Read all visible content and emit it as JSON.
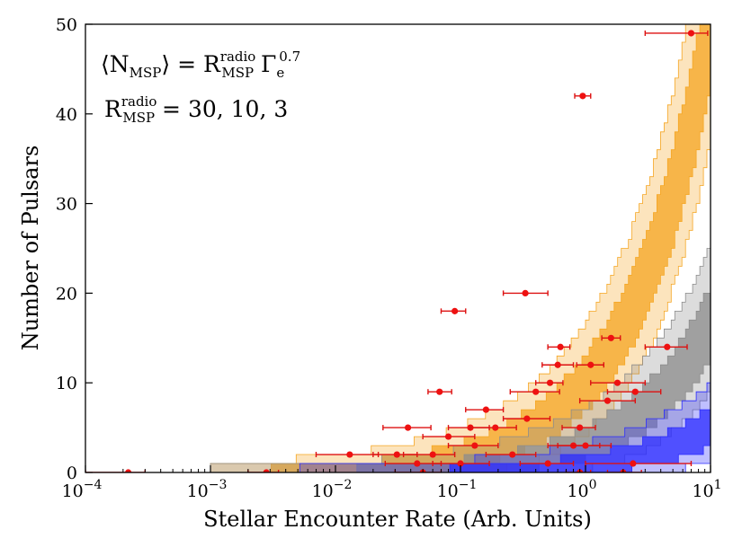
{
  "chart_data": {
    "type": "scatter",
    "xlabel": "Stellar Encounter Rate  (Arb. Units)",
    "ylabel": "Number of Pulsars",
    "xscale": "log",
    "xlim": [
      0.0001,
      10
    ],
    "ylim": [
      0,
      50
    ],
    "x_ticks": [
      {
        "base": "10",
        "exp": "−4"
      },
      {
        "base": "10",
        "exp": "−3"
      },
      {
        "base": "10",
        "exp": "−2"
      },
      {
        "base": "10",
        "exp": "−1"
      },
      {
        "base": "10",
        "exp": "0"
      },
      {
        "base": "10",
        "exp": "1"
      }
    ],
    "y_ticks": [
      "0",
      "10",
      "20",
      "30",
      "40",
      "50"
    ],
    "annotation": {
      "line1": {
        "lhs": "⟨N",
        "lhs_sub": "MSP",
        "rhs_mid": "⟩ = R",
        "rhs_sup": "radio",
        "rhs_sub": "MSP",
        "tail": " Γ",
        "tail_sub": "e",
        "tail_sup": "0.7"
      },
      "line2": {
        "lhs": "R",
        "sup": "radio",
        "sub": "MSP",
        "tail": " = 30, 10, 3"
      }
    },
    "bands": [
      {
        "R": 30,
        "color": "#f5a623",
        "inner_opacity": 0.75,
        "outer_opacity": 0.3
      },
      {
        "R": 10,
        "color": "#8c8c8c",
        "inner_opacity": 0.75,
        "outer_opacity": 0.3
      },
      {
        "R": 3,
        "color": "#2b2bff",
        "inner_opacity": 0.75,
        "outer_opacity": 0.3
      }
    ],
    "points": [
      {
        "x": 0.00022,
        "y": 0,
        "xerr": [
          0.0001,
          0.0003
        ]
      },
      {
        "x": 0.0028,
        "y": 0,
        "xerr": [
          0.002,
          0.0035
        ]
      },
      {
        "x": 0.013,
        "y": 2,
        "xerr": [
          0.007,
          0.022
        ]
      },
      {
        "x": 0.031,
        "y": 2,
        "xerr": [
          0.02,
          0.045
        ]
      },
      {
        "x": 0.038,
        "y": 5,
        "xerr": [
          0.024,
          0.058
        ]
      },
      {
        "x": 0.045,
        "y": 1,
        "xerr": [
          0.025,
          0.07
        ]
      },
      {
        "x": 0.06,
        "y": 2,
        "xerr": [
          0.035,
          0.09
        ]
      },
      {
        "x": 0.068,
        "y": 9,
        "xerr": [
          0.055,
          0.085
        ]
      },
      {
        "x": 0.08,
        "y": 4,
        "xerr": [
          0.05,
          0.13
        ]
      },
      {
        "x": 0.09,
        "y": 18,
        "xerr": [
          0.07,
          0.11
        ]
      },
      {
        "x": 0.1,
        "y": 1,
        "xerr": [
          0.06,
          0.17
        ]
      },
      {
        "x": 0.12,
        "y": 5,
        "xerr": [
          0.08,
          0.17
        ]
      },
      {
        "x": 0.13,
        "y": 3,
        "xerr": [
          0.08,
          0.2
        ]
      },
      {
        "x": 0.16,
        "y": 7,
        "xerr": [
          0.11,
          0.22
        ]
      },
      {
        "x": 0.19,
        "y": 5,
        "xerr": [
          0.12,
          0.28
        ]
      },
      {
        "x": 0.26,
        "y": 2,
        "xerr": [
          0.16,
          0.4
        ]
      },
      {
        "x": 0.33,
        "y": 20,
        "xerr": [
          0.22,
          0.5
        ]
      },
      {
        "x": 0.34,
        "y": 6,
        "xerr": [
          0.22,
          0.52
        ]
      },
      {
        "x": 0.4,
        "y": 9,
        "xerr": [
          0.25,
          0.62
        ]
      },
      {
        "x": 0.5,
        "y": 1,
        "xerr": [
          0.3,
          0.8
        ]
      },
      {
        "x": 0.52,
        "y": 10,
        "xerr": [
          0.4,
          0.66
        ]
      },
      {
        "x": 0.6,
        "y": 12,
        "xerr": [
          0.45,
          0.8
        ]
      },
      {
        "x": 0.63,
        "y": 14,
        "xerr": [
          0.5,
          0.75
        ]
      },
      {
        "x": 0.8,
        "y": 3,
        "xerr": [
          0.5,
          1.3
        ]
      },
      {
        "x": 0.9,
        "y": 5,
        "xerr": [
          0.65,
          1.2
        ]
      },
      {
        "x": 0.95,
        "y": 42,
        "xerr": [
          0.82,
          1.1
        ]
      },
      {
        "x": 1.0,
        "y": 3,
        "xerr": [
          0.6,
          1.6
        ]
      },
      {
        "x": 1.1,
        "y": 12,
        "xerr": [
          0.85,
          1.4
        ]
      },
      {
        "x": 1.5,
        "y": 8,
        "xerr": [
          0.9,
          2.5
        ]
      },
      {
        "x": 1.6,
        "y": 15,
        "xerr": [
          1.35,
          1.9
        ]
      },
      {
        "x": 1.8,
        "y": 10,
        "xerr": [
          1.1,
          3.0
        ]
      },
      {
        "x": 2.0,
        "y": 0,
        "xerr": [
          1.5,
          2.8
        ]
      },
      {
        "x": 2.4,
        "y": 1,
        "xerr": [
          1.0,
          7.0
        ]
      },
      {
        "x": 2.5,
        "y": 9,
        "xerr": [
          1.5,
          4.0
        ]
      },
      {
        "x": 4.5,
        "y": 14,
        "xerr": [
          3.0,
          6.5
        ]
      },
      {
        "x": 7.0,
        "y": 49,
        "xerr": [
          3.0,
          9.5
        ]
      },
      {
        "x": 0.9,
        "y": 0,
        "xerr": [
          0.7,
          1.1
        ]
      },
      {
        "x": 0.05,
        "y": 0,
        "xerr": [
          0.03,
          0.07
        ]
      }
    ]
  }
}
